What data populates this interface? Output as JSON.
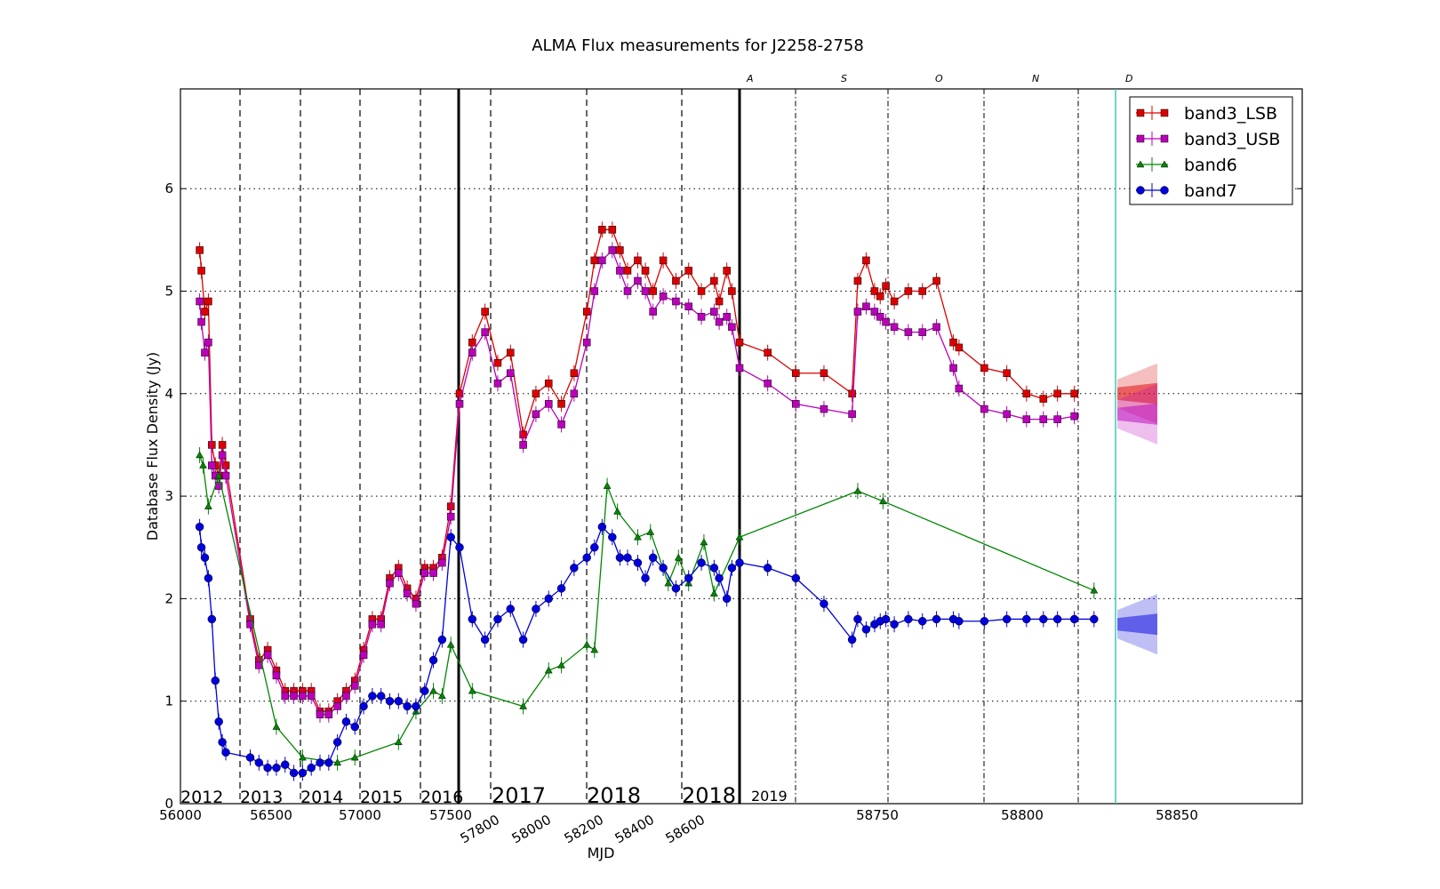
{
  "chart_data": {
    "type": "scatter",
    "title": "ALMA Flux measurements for J2258-2758",
    "xlabel": "MJD",
    "ylabel": "Database Flux Density (Jy)",
    "ylim": [
      0,
      7
    ],
    "yticks": [
      "0",
      "1",
      "2",
      "3",
      "4",
      "5",
      "6"
    ],
    "grid": "horizontal dotted",
    "legend_position": "top-right",
    "xtick_groups": [
      {
        "labels": [
          "56000",
          "56500",
          "57000",
          "57500"
        ],
        "rotated": false
      },
      {
        "labels": [
          "57800",
          "58000",
          "58200",
          "58400",
          "58600"
        ],
        "rotated": true
      },
      {
        "labels": [
          "58750",
          "58800",
          "58850"
        ],
        "rotated": false
      }
    ],
    "year_labels": [
      {
        "text": "2012",
        "size": "small"
      },
      {
        "text": "2013",
        "size": "small"
      },
      {
        "text": "2014",
        "size": "small"
      },
      {
        "text": "2015",
        "size": "small"
      },
      {
        "text": "2016",
        "size": "small"
      },
      {
        "text": "2017",
        "size": "big"
      },
      {
        "text": "2018",
        "size": "big"
      },
      {
        "text": "2018",
        "size": "big"
      },
      {
        "text": "2019",
        "size": "faint"
      }
    ],
    "month_labels": [
      "A",
      "S",
      "O",
      "N",
      "D"
    ],
    "series": [
      {
        "name": "band3_LSB",
        "color": "#dd0000",
        "marker": "square",
        "x": [
          56110,
          56120,
          56140,
          56160,
          56180,
          56200,
          56220,
          56240,
          56260,
          56400,
          56450,
          56500,
          56550,
          56600,
          56650,
          56700,
          56750,
          56800,
          56850,
          56900,
          56950,
          57000,
          57050,
          57100,
          57150,
          57200,
          57250,
          57300,
          57350,
          57400,
          57450,
          57500,
          57550,
          57600,
          57650,
          57700,
          57750,
          57800,
          57850,
          57900,
          57950,
          58000,
          58050,
          58100,
          58130,
          58160,
          58200,
          58230,
          58260,
          58300,
          58330,
          58360,
          58400,
          58450,
          58500,
          58550,
          58600,
          58620,
          58650,
          58670,
          58700,
          58710,
          58720,
          58730,
          58740,
          58742,
          58745,
          58748,
          58750,
          58752,
          58755,
          58760,
          58765,
          58770,
          58776,
          58778,
          58787,
          58795,
          58802,
          58808,
          58813,
          58819
        ],
        "y": [
          5.4,
          5.2,
          4.8,
          4.9,
          3.5,
          3.3,
          3.2,
          3.5,
          3.3,
          1.8,
          1.4,
          1.5,
          1.3,
          1.1,
          1.1,
          1.1,
          1.1,
          0.9,
          0.9,
          1.0,
          1.1,
          1.2,
          1.5,
          1.8,
          1.8,
          2.2,
          2.3,
          2.1,
          2.0,
          2.3,
          2.3,
          2.4,
          2.9,
          4.0,
          4.5,
          4.8,
          4.3,
          4.4,
          3.6,
          4.0,
          4.1,
          3.9,
          4.2,
          4.8,
          5.3,
          5.6,
          5.6,
          5.4,
          5.2,
          5.3,
          5.2,
          5.0,
          5.3,
          5.1,
          5.2,
          5.0,
          5.1,
          4.9,
          5.2,
          5.0,
          4.5,
          4.4,
          4.2,
          4.2,
          4.0,
          5.1,
          5.3,
          5.0,
          4.95,
          5.05,
          4.9,
          5.0,
          5.0,
          5.1,
          4.5,
          4.45,
          4.25,
          4.2,
          4.0,
          3.95,
          4.0,
          4.0
        ]
      },
      {
        "name": "band3_USB",
        "color": "#bb00bb",
        "marker": "square",
        "x": [
          56110,
          56120,
          56140,
          56160,
          56180,
          56200,
          56220,
          56240,
          56260,
          56400,
          56450,
          56500,
          56550,
          56600,
          56650,
          56700,
          56750,
          56800,
          56850,
          56900,
          56950,
          57000,
          57050,
          57100,
          57150,
          57200,
          57250,
          57300,
          57350,
          57400,
          57450,
          57500,
          57550,
          57600,
          57650,
          57700,
          57750,
          57800,
          57850,
          57900,
          57950,
          58000,
          58050,
          58100,
          58130,
          58160,
          58200,
          58230,
          58260,
          58300,
          58330,
          58360,
          58400,
          58450,
          58500,
          58550,
          58600,
          58620,
          58650,
          58670,
          58700,
          58710,
          58720,
          58730,
          58740,
          58742,
          58745,
          58748,
          58750,
          58752,
          58755,
          58760,
          58765,
          58770,
          58776,
          58778,
          58787,
          58795,
          58802,
          58808,
          58813,
          58819
        ],
        "y": [
          4.9,
          4.7,
          4.4,
          4.5,
          3.3,
          3.2,
          3.1,
          3.4,
          3.2,
          1.75,
          1.35,
          1.45,
          1.25,
          1.05,
          1.05,
          1.05,
          1.05,
          0.87,
          0.87,
          0.95,
          1.05,
          1.15,
          1.45,
          1.75,
          1.75,
          2.15,
          2.25,
          2.05,
          1.95,
          2.25,
          2.25,
          2.35,
          2.8,
          3.9,
          4.4,
          4.6,
          4.1,
          4.2,
          3.5,
          3.8,
          3.9,
          3.7,
          4.0,
          4.5,
          5.0,
          5.3,
          5.4,
          5.2,
          5.0,
          5.1,
          5.0,
          4.8,
          4.95,
          4.9,
          4.85,
          4.75,
          4.8,
          4.7,
          4.75,
          4.65,
          4.25,
          4.1,
          3.9,
          3.85,
          3.8,
          4.8,
          4.85,
          4.8,
          4.75,
          4.7,
          4.65,
          4.6,
          4.6,
          4.65,
          4.25,
          4.05,
          3.85,
          3.8,
          3.75,
          3.75,
          3.75,
          3.78
        ]
      },
      {
        "name": "band6",
        "color": "#008800",
        "marker": "triangle",
        "x": [
          56110,
          56130,
          56160,
          56220,
          56550,
          56700,
          56900,
          57000,
          57250,
          57350,
          57450,
          57500,
          57550,
          57650,
          57850,
          57950,
          58000,
          58100,
          58130,
          58180,
          58220,
          58300,
          58350,
          58420,
          58460,
          58500,
          58560,
          58600,
          58700,
          58742,
          58751,
          58826
        ],
        "y": [
          3.4,
          3.3,
          2.9,
          3.2,
          0.75,
          0.45,
          0.4,
          0.45,
          0.6,
          0.9,
          1.1,
          1.05,
          1.55,
          1.1,
          0.95,
          1.3,
          1.35,
          1.55,
          1.5,
          3.1,
          2.85,
          2.6,
          2.65,
          2.15,
          2.4,
          2.15,
          2.55,
          2.05,
          2.6,
          3.05,
          2.95,
          2.08
        ]
      },
      {
        "name": "band7",
        "color": "#0000dd",
        "marker": "circle",
        "x": [
          56110,
          56120,
          56140,
          56160,
          56180,
          56200,
          56220,
          56240,
          56260,
          56400,
          56450,
          56500,
          56550,
          56600,
          56650,
          56700,
          56750,
          56800,
          56850,
          56900,
          56950,
          57000,
          57050,
          57100,
          57150,
          57200,
          57250,
          57300,
          57350,
          57400,
          57450,
          57500,
          57550,
          57600,
          57650,
          57700,
          57750,
          57800,
          57850,
          57900,
          57950,
          58000,
          58050,
          58100,
          58130,
          58160,
          58200,
          58230,
          58260,
          58300,
          58330,
          58360,
          58400,
          58450,
          58500,
          58550,
          58600,
          58620,
          58650,
          58670,
          58700,
          58710,
          58720,
          58730,
          58740,
          58742,
          58745,
          58748,
          58750,
          58752,
          58755,
          58760,
          58765,
          58770,
          58776,
          58778,
          58787,
          58795,
          58802,
          58808,
          58813,
          58819,
          58826
        ],
        "y": [
          2.7,
          2.5,
          2.4,
          2.2,
          1.8,
          1.2,
          0.8,
          0.6,
          0.5,
          0.45,
          0.4,
          0.35,
          0.35,
          0.38,
          0.3,
          0.3,
          0.35,
          0.4,
          0.4,
          0.6,
          0.8,
          0.75,
          0.95,
          1.05,
          1.05,
          1.0,
          1.0,
          0.95,
          0.95,
          1.1,
          1.4,
          1.6,
          2.6,
          2.5,
          1.8,
          1.6,
          1.8,
          1.9,
          1.6,
          1.9,
          2.0,
          2.1,
          2.3,
          2.4,
          2.5,
          2.7,
          2.6,
          2.4,
          2.4,
          2.35,
          2.2,
          2.4,
          2.3,
          2.1,
          2.2,
          2.35,
          2.3,
          2.2,
          2.0,
          2.3,
          2.35,
          2.3,
          2.2,
          1.95,
          1.6,
          1.8,
          1.7,
          1.75,
          1.78,
          1.8,
          1.75,
          1.8,
          1.78,
          1.8,
          1.8,
          1.78,
          1.78,
          1.8,
          1.8,
          1.8,
          1.8,
          1.8,
          1.8
        ]
      }
    ],
    "predictions": [
      {
        "series": "band3_LSB",
        "level": 4.0
      },
      {
        "series": "band3_USB",
        "level": 3.8
      },
      {
        "series": "band7",
        "level": 1.75
      }
    ]
  }
}
